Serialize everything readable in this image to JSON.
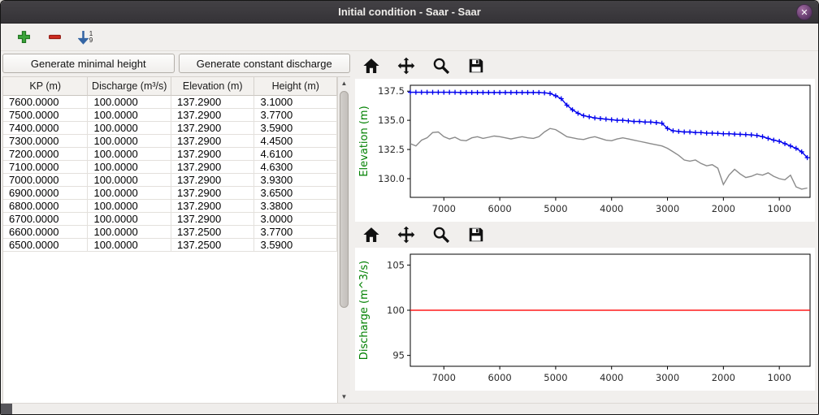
{
  "window": {
    "title": "Initial condition - Saar - Saar",
    "close_glyph": "✕"
  },
  "toolbar": {
    "icons": [
      "add-icon",
      "remove-icon",
      "sort-rows-icon"
    ],
    "sort_digits": [
      "1",
      "9"
    ]
  },
  "actions": {
    "generate_minimal_height": "Generate minimal height",
    "generate_constant_discharge": "Generate constant discharge"
  },
  "table": {
    "headers": [
      "KP (m)",
      "Discharge (m³/s)",
      "Elevation (m)",
      "Height (m)"
    ],
    "rows": [
      [
        "7600.0000",
        "100.0000",
        "137.2900",
        "3.1000"
      ],
      [
        "7500.0000",
        "100.0000",
        "137.2900",
        "3.7700"
      ],
      [
        "7400.0000",
        "100.0000",
        "137.2900",
        "3.5900"
      ],
      [
        "7300.0000",
        "100.0000",
        "137.2900",
        "4.4500"
      ],
      [
        "7200.0000",
        "100.0000",
        "137.2900",
        "4.6100"
      ],
      [
        "7100.0000",
        "100.0000",
        "137.2900",
        "4.6300"
      ],
      [
        "7000.0000",
        "100.0000",
        "137.2900",
        "3.9300"
      ],
      [
        "6900.0000",
        "100.0000",
        "137.2900",
        "3.6500"
      ],
      [
        "6800.0000",
        "100.0000",
        "137.2900",
        "3.3800"
      ],
      [
        "6700.0000",
        "100.0000",
        "137.2900",
        "3.0000"
      ],
      [
        "6600.0000",
        "100.0000",
        "137.2500",
        "3.7700"
      ],
      [
        "6500.0000",
        "100.0000",
        "137.2500",
        "3.5900"
      ]
    ]
  },
  "nav_toolbar": {
    "icons": [
      "home-icon",
      "pan-icon",
      "zoom-icon",
      "save-icon"
    ]
  },
  "colors": {
    "axis_label_green": "#008000",
    "series_blue": "#0000ee",
    "series_gray": "#8a8a8a",
    "series_red": "#ff1a1a",
    "titlebar": "#3a383c"
  },
  "chart_data": [
    {
      "type": "line",
      "title": "",
      "xlabel": "",
      "ylabel": "Elevation (m)",
      "x_reversed": true,
      "xlim": [
        7600,
        450
      ],
      "ylim": [
        128.4,
        138.0
      ],
      "xticks": [
        7000,
        6000,
        5000,
        4000,
        3000,
        2000,
        1000
      ],
      "xtick_labels": [
        "7000",
        "6000",
        "5000",
        "4000",
        "3000",
        "2000",
        "1000"
      ],
      "yticks": [
        130.0,
        132.5,
        135.0,
        137.5
      ],
      "ytick_labels": [
        "130.0",
        "132.5",
        "135.0",
        "137.5"
      ],
      "grid": false,
      "legend": "none",
      "series": [
        {
          "name": "water-surface-elevation",
          "color": "#0000ee",
          "marker": "+",
          "x_start": 7600,
          "x_step": -100,
          "values": [
            137.4,
            137.4,
            137.4,
            137.4,
            137.4,
            137.4,
            137.4,
            137.4,
            137.4,
            137.38,
            137.38,
            137.38,
            137.38,
            137.38,
            137.38,
            137.38,
            137.38,
            137.38,
            137.38,
            137.38,
            137.38,
            137.38,
            137.38,
            137.38,
            137.35,
            137.3,
            137.1,
            136.85,
            136.3,
            135.9,
            135.6,
            135.4,
            135.3,
            135.2,
            135.15,
            135.1,
            135.05,
            135.0,
            135.0,
            134.95,
            134.9,
            134.9,
            134.85,
            134.85,
            134.8,
            134.75,
            134.3,
            134.1,
            134.05,
            134.0,
            134.0,
            133.95,
            133.95,
            133.9,
            133.9,
            133.88,
            133.85,
            133.85,
            133.82,
            133.8,
            133.78,
            133.75,
            133.7,
            133.6,
            133.45,
            133.3,
            133.2,
            133.0,
            132.8,
            132.6,
            132.3,
            131.8
          ]
        },
        {
          "name": "bed-elevation",
          "color": "#8a8a8a",
          "marker": null,
          "x_start": 7600,
          "x_step": -100,
          "values": [
            133.0,
            132.8,
            133.3,
            133.5,
            133.95,
            134.0,
            133.6,
            133.4,
            133.55,
            133.3,
            133.25,
            133.5,
            133.6,
            133.45,
            133.55,
            133.65,
            133.6,
            133.5,
            133.4,
            133.5,
            133.6,
            133.5,
            133.45,
            133.6,
            134.0,
            134.3,
            134.2,
            133.9,
            133.6,
            133.5,
            133.4,
            133.35,
            133.5,
            133.6,
            133.45,
            133.3,
            133.25,
            133.4,
            133.5,
            133.4,
            133.3,
            133.2,
            133.1,
            133.0,
            132.9,
            132.8,
            132.6,
            132.3,
            132.0,
            131.6,
            131.5,
            131.6,
            131.3,
            131.1,
            131.2,
            130.9,
            129.5,
            130.3,
            130.8,
            130.4,
            130.1,
            130.2,
            130.4,
            130.3,
            130.5,
            130.2,
            130.0,
            129.9,
            130.3,
            129.3,
            129.1,
            129.2
          ]
        }
      ]
    },
    {
      "type": "line",
      "title": "",
      "xlabel": "",
      "ylabel": "Discharge (m^3/s)",
      "x_reversed": true,
      "xlim": [
        7600,
        450
      ],
      "ylim": [
        93.8,
        106.2
      ],
      "xticks": [
        7000,
        6000,
        5000,
        4000,
        3000,
        2000,
        1000
      ],
      "xtick_labels": [
        "7000",
        "6000",
        "5000",
        "4000",
        "3000",
        "2000",
        "1000"
      ],
      "yticks": [
        95,
        100,
        105
      ],
      "ytick_labels": [
        "95",
        "100",
        "105"
      ],
      "grid": false,
      "legend": "none",
      "series": [
        {
          "name": "constant-discharge",
          "color": "#ff1a1a",
          "marker": null,
          "x": [
            7600,
            450
          ],
          "values": [
            100,
            100
          ]
        }
      ]
    }
  ]
}
